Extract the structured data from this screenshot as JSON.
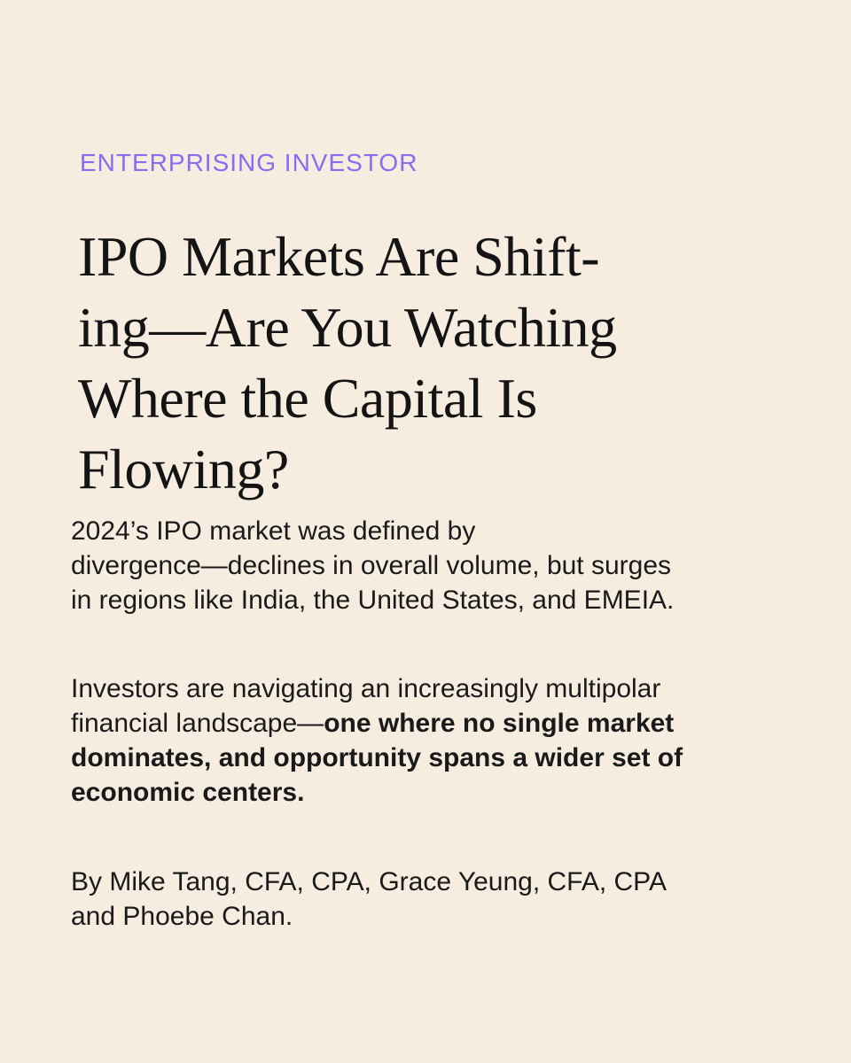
{
  "kicker": "ENTERPRISING INVESTOR",
  "headline": {
    "lines": [
      "IPO Markets Are Shift-",
      "ing—Are You Watching",
      "Where the Capital Is",
      "Flowing?"
    ]
  },
  "summary": {
    "lines": [
      "2024’s IPO market was defined by",
      "divergence—declines in overall volume, but surges",
      "in regions like India, the United States, and EMEIA."
    ]
  },
  "paragraph2": {
    "line1": "Investors are navigating an increasingly multipolar",
    "line2_regular": "financial landscape—",
    "line2_bold": "one where no single market",
    "line3_bold": "dominates, and opportunity spans a wider set of",
    "line4_bold": "economic centers."
  },
  "byline": {
    "lines": [
      "By Mike Tang, CFA, CPA, Grace Yeung, CFA, CPA",
      "and Phoebe Chan."
    ]
  },
  "colors": {
    "background": "#f7ece0",
    "kicker": "#8b6cf0",
    "text": "#1a1a1a"
  }
}
